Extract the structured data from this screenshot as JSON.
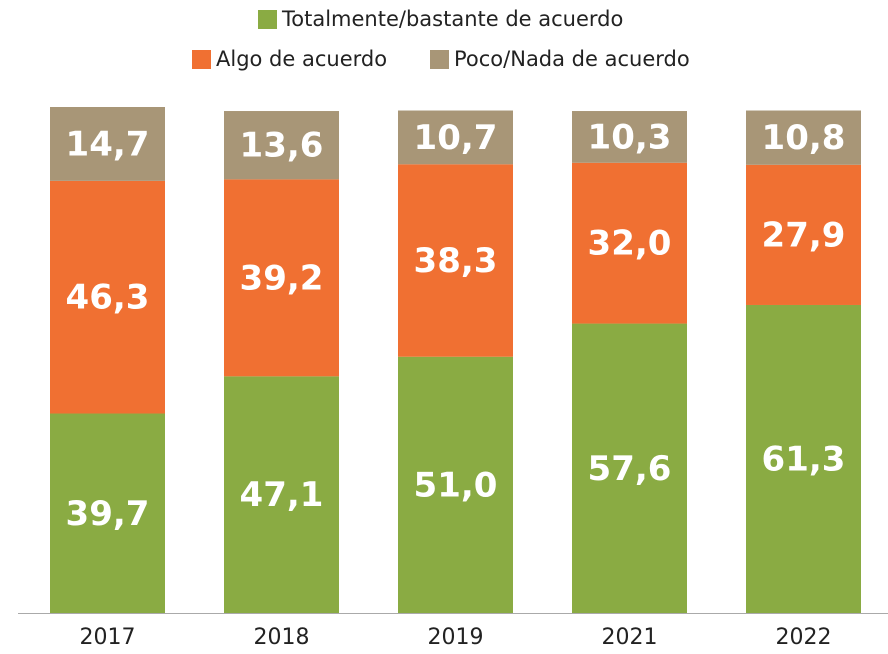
{
  "chart_data": {
    "type": "stacked_bar",
    "categories": [
      "2017",
      "2018",
      "2019",
      "2021",
      "2022"
    ],
    "series": [
      {
        "name": "Totalmente/bastante de acuerdo",
        "color": "#8aab43",
        "values": [
          39.7,
          47.1,
          51.0,
          57.6,
          61.3
        ],
        "value_labels": [
          "39,7",
          "47,1",
          "51,0",
          "57,6",
          "61,3"
        ]
      },
      {
        "name": "Algo de acuerdo",
        "color": "#f07032",
        "values": [
          46.3,
          39.2,
          38.3,
          32.0,
          27.9
        ],
        "value_labels": [
          "46,3",
          "39,2",
          "38,3",
          "32,0",
          "27,9"
        ]
      },
      {
        "name": "Poco/Nada de acuerdo",
        "color": "#a89677",
        "values": [
          14.7,
          13.6,
          10.7,
          10.3,
          10.8
        ],
        "value_labels": [
          "14,7",
          "13,6",
          "10,7",
          "10,3",
          "10,8"
        ]
      }
    ],
    "legend": "top"
  }
}
